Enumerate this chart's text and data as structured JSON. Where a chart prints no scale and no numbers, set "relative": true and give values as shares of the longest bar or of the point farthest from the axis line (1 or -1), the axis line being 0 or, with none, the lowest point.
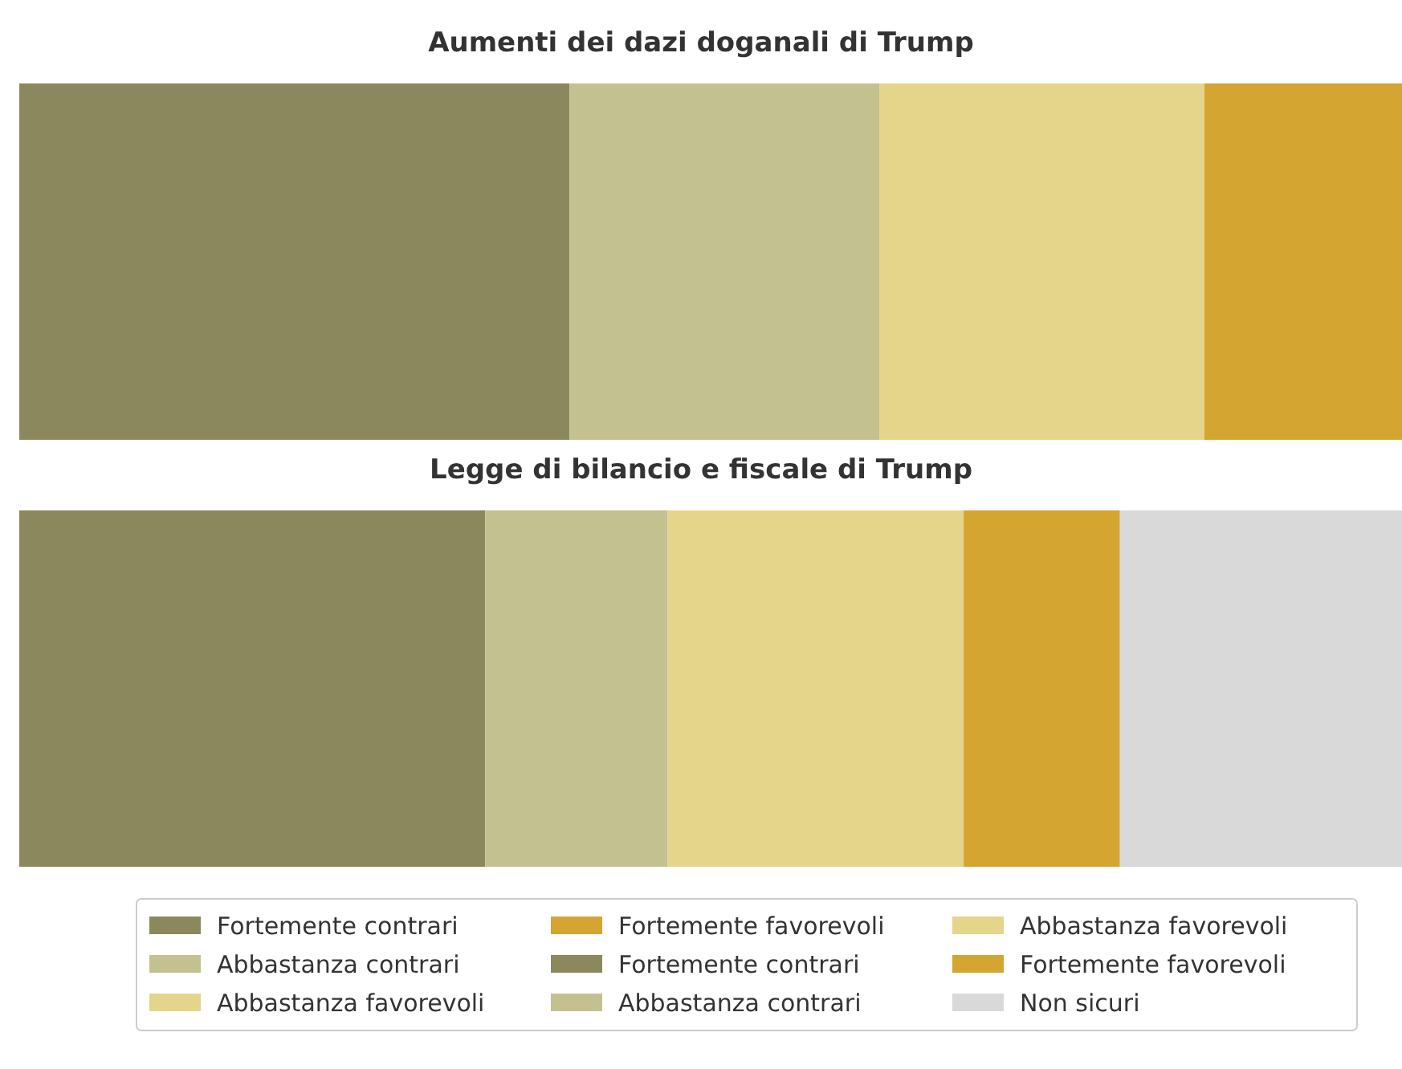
{
  "chart_data": [
    {
      "type": "bar",
      "title": "Aumenti dei dazi doganali di Trump",
      "orientation": "horizontal",
      "stacked": true,
      "relative": true,
      "categories": [
        null
      ],
      "legend": "bottom",
      "series": [
        {
          "name": "Fortemente contrari",
          "color": "#8b885e",
          "values": [
            0.398
          ]
        },
        {
          "name": "Abbastanza contrari",
          "color": "#c3c18f",
          "values": [
            0.224
          ]
        },
        {
          "name": "Abbastanza favorevoli",
          "color": "#e5d58b",
          "values": [
            0.235
          ]
        },
        {
          "name": "Fortemente favorevoli",
          "color": "#d4a531",
          "values": [
            0.143
          ]
        }
      ]
    },
    {
      "type": "bar",
      "title": "Legge di bilancio e fiscale di Trump",
      "orientation": "horizontal",
      "stacked": true,
      "relative": true,
      "categories": [
        null
      ],
      "legend": "bottom",
      "series": [
        {
          "name": "Fortemente contrari",
          "color": "#8b885e",
          "values": [
            0.337
          ]
        },
        {
          "name": "Abbastanza contrari",
          "color": "#c3c18f",
          "values": [
            0.132
          ]
        },
        {
          "name": "Abbastanza favorevoli",
          "color": "#e5d58b",
          "values": [
            0.214
          ]
        },
        {
          "name": "Fortemente favorevoli",
          "color": "#d4a531",
          "values": [
            0.113
          ]
        },
        {
          "name": "Non sicuri",
          "color": "#d9d9d9",
          "values": [
            0.204
          ]
        }
      ]
    }
  ]
}
